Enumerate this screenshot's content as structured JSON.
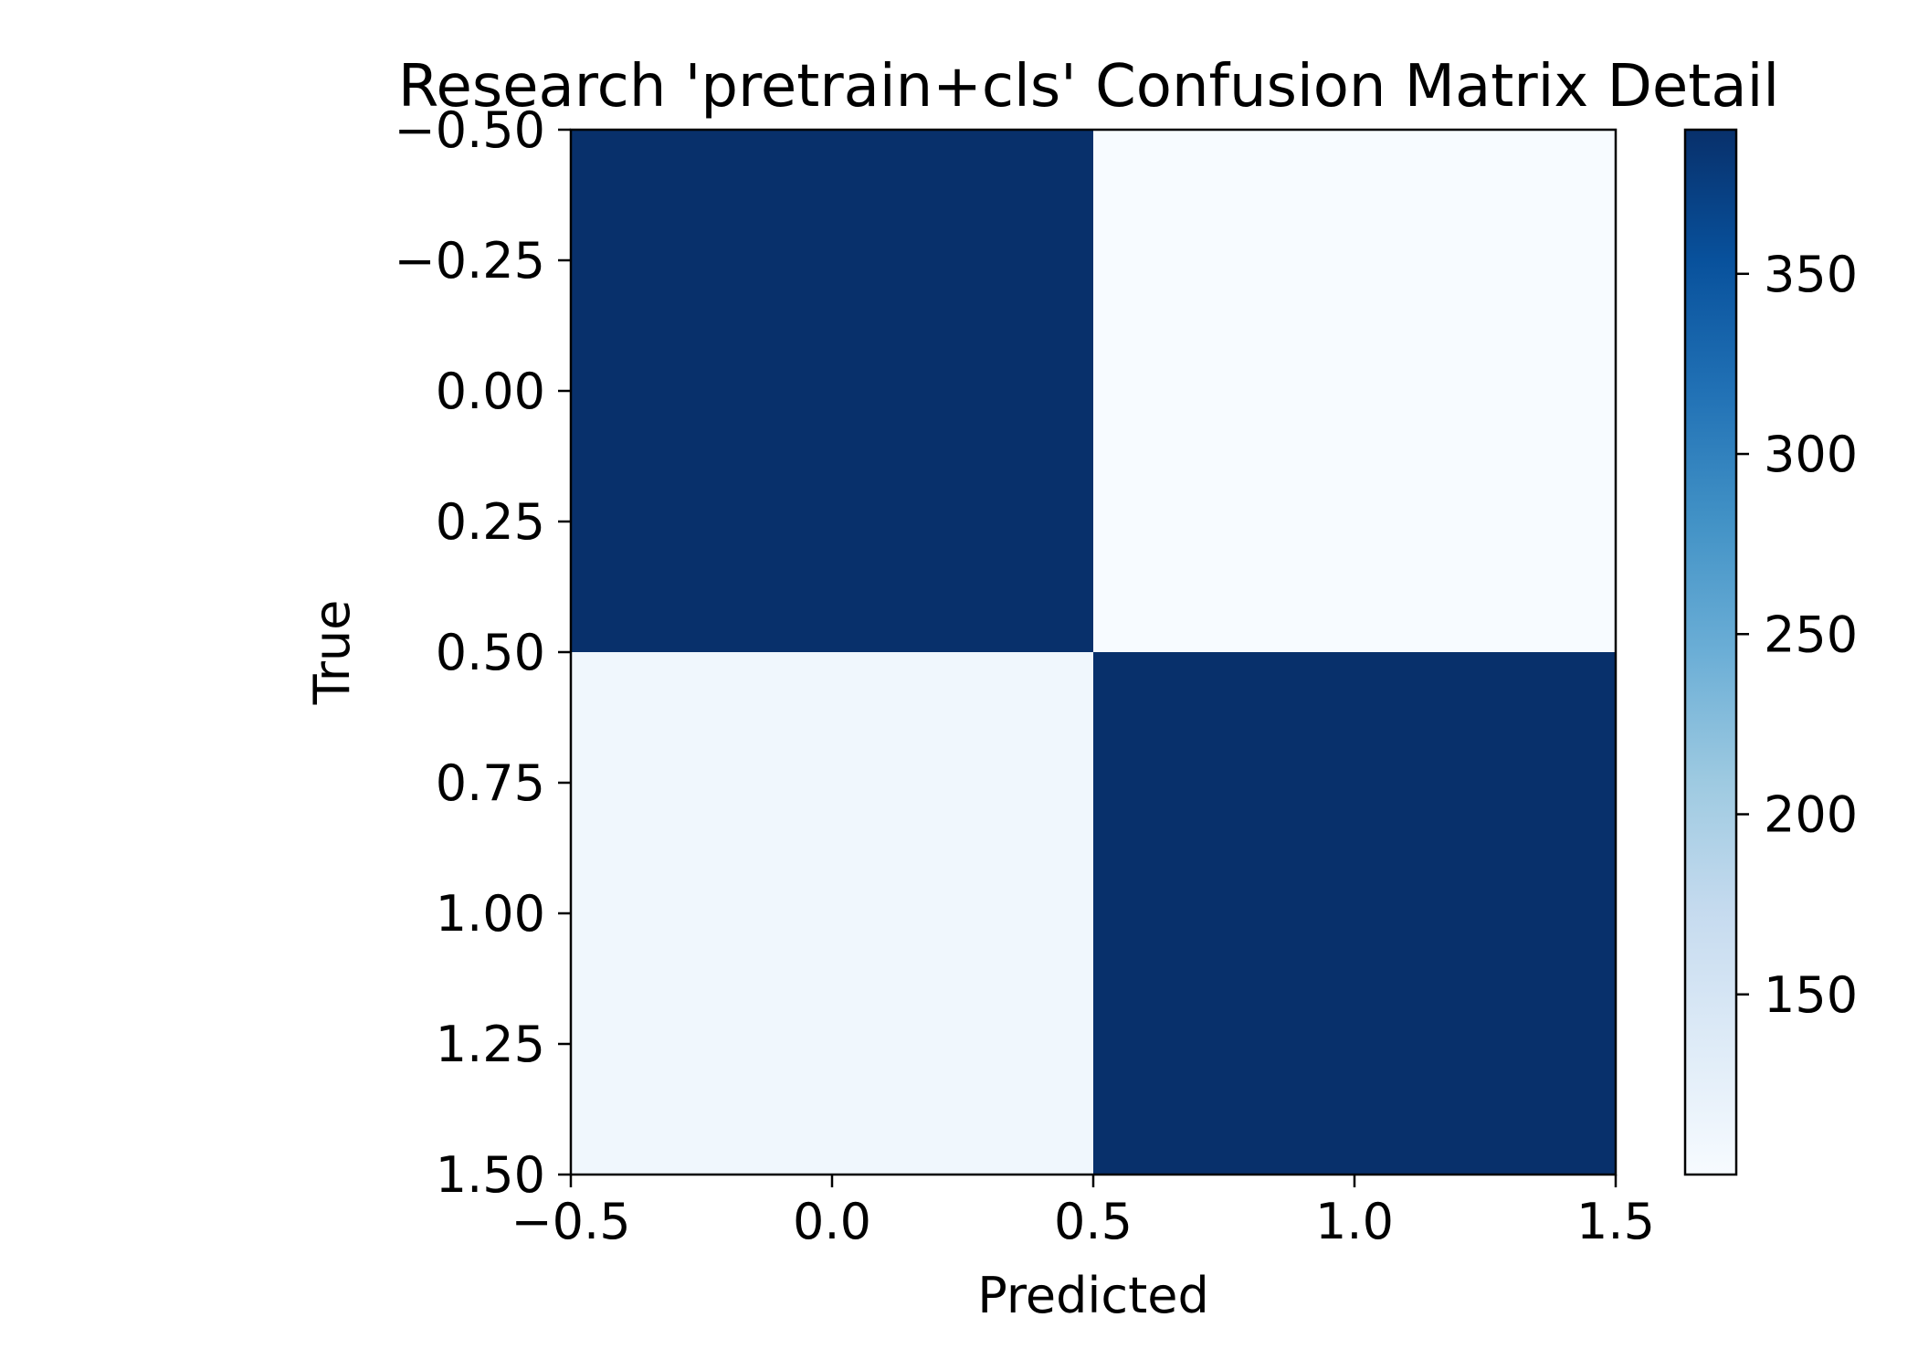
{
  "chart_data": {
    "type": "heatmap",
    "title": "Research 'pretrain+cls' Confusion Matrix Detail",
    "xlabel": "Predicted",
    "ylabel": "True",
    "matrix": [
      [
        390,
        100
      ],
      [
        110,
        390
      ]
    ],
    "xlim": [
      -0.5,
      1.5
    ],
    "ylim": [
      1.5,
      -0.5
    ],
    "x_ticks": [
      -0.5,
      0.0,
      0.5,
      1.0,
      1.5
    ],
    "x_tick_labels": [
      "−0.5",
      "0.0",
      "0.5",
      "1.0",
      "1.5"
    ],
    "y_ticks": [
      -0.5,
      -0.25,
      0.0,
      0.25,
      0.5,
      0.75,
      1.0,
      1.25,
      1.5
    ],
    "y_tick_labels": [
      "−0.50",
      "−0.25",
      "0.00",
      "0.25",
      "0.50",
      "0.75",
      "1.00",
      "1.25",
      "1.50"
    ],
    "colorbar": {
      "colormap": "Blues",
      "range": [
        100,
        390
      ],
      "ticks": [
        150,
        200,
        250,
        300,
        350
      ],
      "tick_labels": [
        "150",
        "200",
        "250",
        "300",
        "350"
      ]
    },
    "grid": false
  }
}
